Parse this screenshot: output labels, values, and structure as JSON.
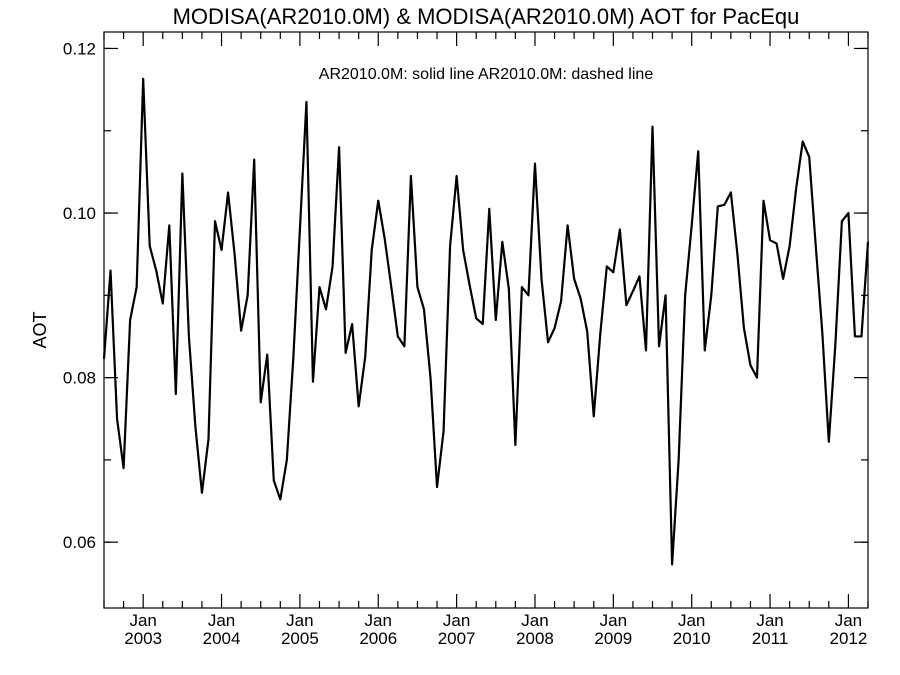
{
  "chart_data": {
    "type": "line",
    "title": "MODISA(AR2010.0M) & MODISA(AR2010.0M)  AOT for PacEqu",
    "legend_text": "AR2010.0M: solid line   AR2010.0M: dashed line",
    "ylabel": "AOT",
    "xlabel": "",
    "ylim": [
      0.052,
      0.122
    ],
    "y_ticks": [
      "0.06",
      "0.08",
      "0.10",
      "0.12"
    ],
    "y_tick_values": [
      0.06,
      0.08,
      0.1,
      0.12
    ],
    "x_ticks": [
      {
        "month": "Jan",
        "year": "2003"
      },
      {
        "month": "Jan",
        "year": "2004"
      },
      {
        "month": "Jan",
        "year": "2005"
      },
      {
        "month": "Jan",
        "year": "2006"
      },
      {
        "month": "Jan",
        "year": "2007"
      },
      {
        "month": "Jan",
        "year": "2008"
      },
      {
        "month": "Jan",
        "year": "2009"
      },
      {
        "month": "Jan",
        "year": "2010"
      },
      {
        "month": "Jan",
        "year": "2011"
      },
      {
        "month": "Jan",
        "year": "2012"
      }
    ],
    "x_range": [
      "2002-07",
      "2012-04"
    ],
    "grid": false,
    "series": [
      {
        "style": "solid",
        "color": "#000000",
        "points": [
          [
            "2002-07",
            0.0823
          ],
          [
            "2002-08",
            0.093
          ],
          [
            "2002-09",
            0.075
          ],
          [
            "2002-10",
            0.069
          ],
          [
            "2002-11",
            0.087
          ],
          [
            "2002-12",
            0.091
          ],
          [
            "2003-01",
            0.1163
          ],
          [
            "2003-02",
            0.096
          ],
          [
            "2003-03",
            0.093
          ],
          [
            "2003-04",
            0.089
          ],
          [
            "2003-05",
            0.0985
          ],
          [
            "2003-06",
            0.078
          ],
          [
            "2003-07",
            0.1048
          ],
          [
            "2003-08",
            0.085
          ],
          [
            "2003-09",
            0.074
          ],
          [
            "2003-10",
            0.066
          ],
          [
            "2003-11",
            0.0725
          ],
          [
            "2003-12",
            0.099
          ],
          [
            "2004-01",
            0.0955
          ],
          [
            "2004-02",
            0.1025
          ],
          [
            "2004-03",
            0.095
          ],
          [
            "2004-04",
            0.0857
          ],
          [
            "2004-05",
            0.09
          ],
          [
            "2004-06",
            0.1065
          ],
          [
            "2004-07",
            0.077
          ],
          [
            "2004-08",
            0.0828
          ],
          [
            "2004-09",
            0.0675
          ],
          [
            "2004-10",
            0.0652
          ],
          [
            "2004-11",
            0.07
          ],
          [
            "2004-12",
            0.0825
          ],
          [
            "2005-01",
            0.098
          ],
          [
            "2005-02",
            0.1135
          ],
          [
            "2005-03",
            0.0795
          ],
          [
            "2005-04",
            0.091
          ],
          [
            "2005-05",
            0.0883
          ],
          [
            "2005-06",
            0.0935
          ],
          [
            "2005-07",
            0.108
          ],
          [
            "2005-08",
            0.083
          ],
          [
            "2005-09",
            0.0865
          ],
          [
            "2005-10",
            0.0765
          ],
          [
            "2005-11",
            0.0825
          ],
          [
            "2005-12",
            0.0955
          ],
          [
            "2006-01",
            0.1015
          ],
          [
            "2006-02",
            0.0968
          ],
          [
            "2006-03",
            0.091
          ],
          [
            "2006-04",
            0.085
          ],
          [
            "2006-05",
            0.0838
          ],
          [
            "2006-06",
            0.1045
          ],
          [
            "2006-07",
            0.091
          ],
          [
            "2006-08",
            0.0883
          ],
          [
            "2006-09",
            0.08
          ],
          [
            "2006-10",
            0.0667
          ],
          [
            "2006-11",
            0.0735
          ],
          [
            "2006-12",
            0.096
          ],
          [
            "2007-01",
            0.1045
          ],
          [
            "2007-02",
            0.0955
          ],
          [
            "2007-03",
            0.0912
          ],
          [
            "2007-04",
            0.0872
          ],
          [
            "2007-05",
            0.0865
          ],
          [
            "2007-06",
            0.1005
          ],
          [
            "2007-07",
            0.087
          ],
          [
            "2007-08",
            0.0965
          ],
          [
            "2007-09",
            0.0908
          ],
          [
            "2007-10",
            0.0718
          ],
          [
            "2007-11",
            0.091
          ],
          [
            "2007-12",
            0.09
          ],
          [
            "2008-01",
            0.106
          ],
          [
            "2008-02",
            0.092
          ],
          [
            "2008-03",
            0.0843
          ],
          [
            "2008-04",
            0.086
          ],
          [
            "2008-05",
            0.0893
          ],
          [
            "2008-06",
            0.0985
          ],
          [
            "2008-07",
            0.092
          ],
          [
            "2008-08",
            0.0896
          ],
          [
            "2008-09",
            0.0856
          ],
          [
            "2008-10",
            0.0753
          ],
          [
            "2008-11",
            0.0853
          ],
          [
            "2008-12",
            0.0935
          ],
          [
            "2009-01",
            0.0928
          ],
          [
            "2009-02",
            0.098
          ],
          [
            "2009-03",
            0.0888
          ],
          [
            "2009-04",
            0.0905
          ],
          [
            "2009-05",
            0.0923
          ],
          [
            "2009-06",
            0.0833
          ],
          [
            "2009-07",
            0.1105
          ],
          [
            "2009-08",
            0.0838
          ],
          [
            "2009-09",
            0.09
          ],
          [
            "2009-10",
            0.0573
          ],
          [
            "2009-11",
            0.07
          ],
          [
            "2009-12",
            0.09
          ],
          [
            "2010-01",
            0.0985
          ],
          [
            "2010-02",
            0.1075
          ],
          [
            "2010-03",
            0.0833
          ],
          [
            "2010-04",
            0.09
          ],
          [
            "2010-05",
            0.1008
          ],
          [
            "2010-06",
            0.101
          ],
          [
            "2010-07",
            0.1025
          ],
          [
            "2010-08",
            0.095
          ],
          [
            "2010-09",
            0.086
          ],
          [
            "2010-10",
            0.0815
          ],
          [
            "2010-11",
            0.08
          ],
          [
            "2010-12",
            0.1015
          ],
          [
            "2011-01",
            0.0967
          ],
          [
            "2011-02",
            0.0963
          ],
          [
            "2011-03",
            0.092
          ],
          [
            "2011-04",
            0.096
          ],
          [
            "2011-05",
            0.103
          ],
          [
            "2011-06",
            0.1087
          ],
          [
            "2011-07",
            0.1068
          ],
          [
            "2011-08",
            0.096
          ],
          [
            "2011-09",
            0.0855
          ],
          [
            "2011-10",
            0.0722
          ],
          [
            "2011-11",
            0.084
          ],
          [
            "2011-12",
            0.099
          ],
          [
            "2012-01",
            0.1
          ],
          [
            "2012-02",
            0.085
          ],
          [
            "2012-03",
            0.085
          ],
          [
            "2012-04",
            0.0965
          ]
        ]
      }
    ]
  }
}
